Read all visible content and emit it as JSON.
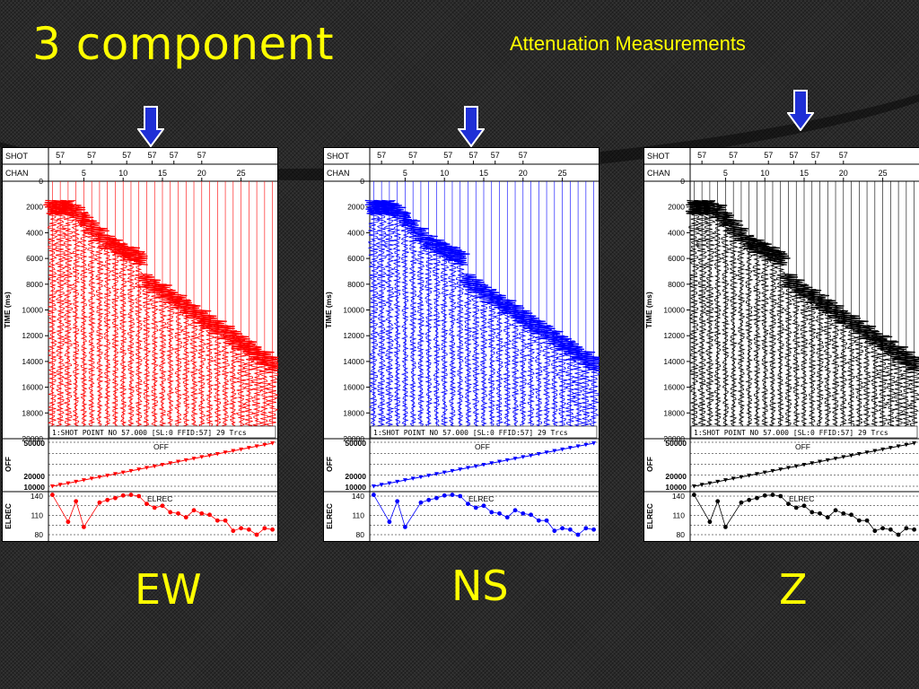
{
  "slide": {
    "title": "3 component",
    "subtitle": "Attenuation Measurements"
  },
  "panels": [
    {
      "label": "EW",
      "color": "#ff0000"
    },
    {
      "label": "NS",
      "color": "#0000ff"
    },
    {
      "label": "Z",
      "color": "#000000"
    }
  ],
  "arrow_color": "#1f2fd6",
  "chart_data": {
    "type": "line",
    "header_rows": [
      "SHOT",
      "CHAN"
    ],
    "shot_ticks": [
      "57",
      "57",
      "57",
      "57",
      "57",
      "57"
    ],
    "chan_ticks": [
      5,
      10,
      15,
      20,
      25
    ],
    "ylabel": "TIME (ms)",
    "ylim": [
      0,
      20000
    ],
    "yticks": [
      0,
      2000,
      4000,
      6000,
      8000,
      10000,
      12000,
      14000,
      16000,
      18000,
      20000
    ],
    "footer_text": "1:SHOT POINT NO 57.000 [SL:0 FFID:57] 29 Trcs",
    "off_track": {
      "name": "OFF",
      "axis_label": "OFF",
      "yticks": [
        50000,
        20000,
        10000
      ],
      "channels": [
        1,
        2,
        3,
        4,
        5,
        6,
        7,
        8,
        9,
        10,
        11,
        12,
        13,
        14,
        15,
        16,
        17,
        18,
        19,
        20,
        21,
        22,
        23,
        24,
        25,
        26,
        27,
        28,
        29
      ],
      "values": [
        10000,
        11400,
        12800,
        14200,
        15600,
        17000,
        18400,
        19800,
        21200,
        22600,
        24000,
        25400,
        26800,
        28200,
        29600,
        31000,
        32400,
        33800,
        35200,
        36600,
        38000,
        39400,
        40800,
        42200,
        43600,
        45000,
        46400,
        47800,
        49200
      ]
    },
    "elrec_track": {
      "name": "ELREC",
      "axis_label": "ELREC",
      "yticks": [
        140,
        110,
        80
      ],
      "channels": [
        1,
        3,
        4,
        5,
        7,
        8,
        9,
        10,
        11,
        12,
        13,
        14,
        15,
        16,
        17,
        18,
        19,
        20,
        21,
        22,
        23,
        24,
        25,
        26,
        27,
        28,
        29
      ],
      "values": [
        142,
        100,
        132,
        92,
        130,
        134,
        137,
        141,
        142,
        140,
        128,
        122,
        125,
        115,
        113,
        107,
        118,
        113,
        111,
        102,
        102,
        86,
        90,
        88,
        80,
        90,
        88
      ]
    },
    "components": [
      "EW",
      "NS",
      "Z"
    ]
  }
}
